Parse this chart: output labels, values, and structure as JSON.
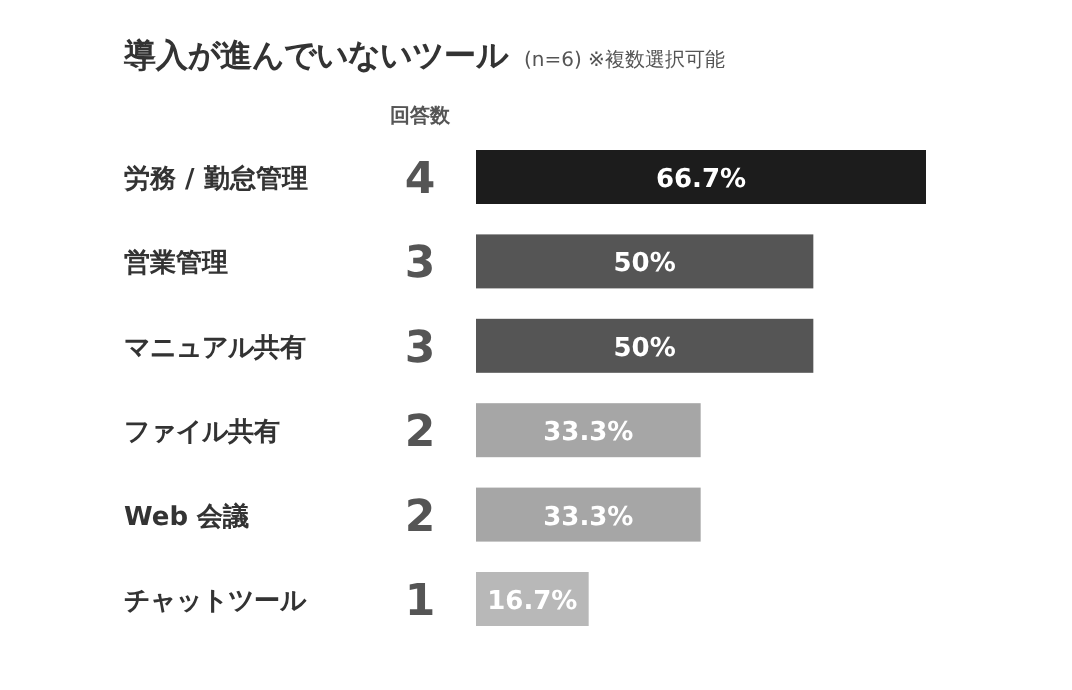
{
  "chart_data": {
    "type": "bar",
    "orientation": "horizontal",
    "title": "導入が進んでいないツール",
    "subtitle": "(n=6) ※複数選択可能",
    "annotations": [
      "回答数",
      "4",
      "3",
      "3",
      "2",
      "2",
      "1"
    ],
    "categories": [
      "労務 / 勤怠管理",
      "営業管理",
      "マニュアル共有",
      "ファイル共有",
      "Web 会議",
      "チャットツール"
    ],
    "values": [
      66.7,
      50,
      50,
      33.3,
      33.3,
      16.7
    ],
    "value_labels": [
      "66.7%",
      "50%",
      "50%",
      "33.3%",
      "33.3%",
      "16.7%"
    ],
    "colors": [
      "#1c1c1c",
      "#555555",
      "#555555",
      "#a6a6a6",
      "#a6a6a6",
      "#b8b8b8"
    ]
  }
}
